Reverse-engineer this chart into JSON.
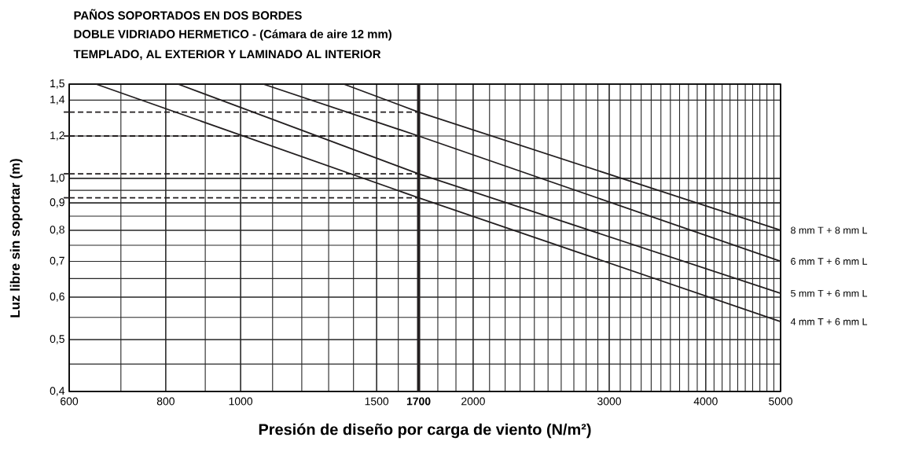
{
  "chart_data": {
    "type": "line",
    "title": "PAÑOS SOPORTADOS EN DOS BORDES",
    "subtitle": "DOBLE VIDRIADO HERMETICO - (Cámara de aire 12 mm)",
    "annotations": [
      "TEMPLADO, AL EXTERIOR Y LAMINADO AL INTERIOR"
    ],
    "xlabel": "Presión de diseño por carga de viento (N/m²)",
    "ylabel": "Luz libre sin soportar (m)",
    "log": "xy",
    "grid": true,
    "marker": "none",
    "line_style": "solid",
    "xlim": [
      600,
      5000
    ],
    "ylim": [
      0.4,
      1.5
    ],
    "xticks": [
      600,
      800,
      1000,
      1500,
      2000,
      3000,
      4000,
      5000
    ],
    "yticks": [
      {
        "value": 0.4,
        "label": "0,4"
      },
      {
        "value": 0.5,
        "label": "0,5"
      },
      {
        "value": 0.6,
        "label": "0,6"
      },
      {
        "value": 0.7,
        "label": "0,7"
      },
      {
        "value": 0.8,
        "label": "0,8"
      },
      {
        "value": 0.9,
        "label": "0,9"
      },
      {
        "value": 1.0,
        "label": "1,0"
      },
      {
        "value": 1.2,
        "label": "1,2"
      },
      {
        "value": 1.4,
        "label": "1,4"
      },
      {
        "value": 1.5,
        "label": "1,5"
      }
    ],
    "series": [
      {
        "name": "8 mm T + 8 mm L",
        "color": "#231f20",
        "x": [
          1360,
          1700,
          5000
        ],
        "values": [
          1.5,
          1.33,
          0.8
        ]
      },
      {
        "name": "6 mm T + 6 mm L",
        "color": "#231f20",
        "x": [
          1070,
          1700,
          5000
        ],
        "values": [
          1.5,
          1.2,
          0.7
        ]
      },
      {
        "name": "5 mm T + 6 mm L",
        "color": "#231f20",
        "x": [
          830,
          1700,
          5000
        ],
        "values": [
          1.5,
          1.02,
          0.61
        ]
      },
      {
        "name": "4 mm T + 6 mm L",
        "color": "#231f20",
        "x": [
          650,
          1700,
          5000
        ],
        "values": [
          1.5,
          0.92,
          0.54
        ]
      }
    ],
    "ref_lines": [
      {
        "axis": "x",
        "value": 1700,
        "label": "1700",
        "color": "#231f20",
        "line_style": "solid"
      },
      {
        "axis": "y",
        "value": 1.33,
        "color": "#231f20",
        "line_style": "dashed"
      },
      {
        "axis": "y",
        "value": 1.2,
        "color": "#231f20",
        "line_style": "dashed"
      },
      {
        "axis": "y",
        "value": 1.02,
        "color": "#231f20",
        "line_style": "dashed"
      },
      {
        "axis": "y",
        "value": 0.92,
        "color": "#231f20",
        "line_style": "dashed"
      }
    ]
  }
}
